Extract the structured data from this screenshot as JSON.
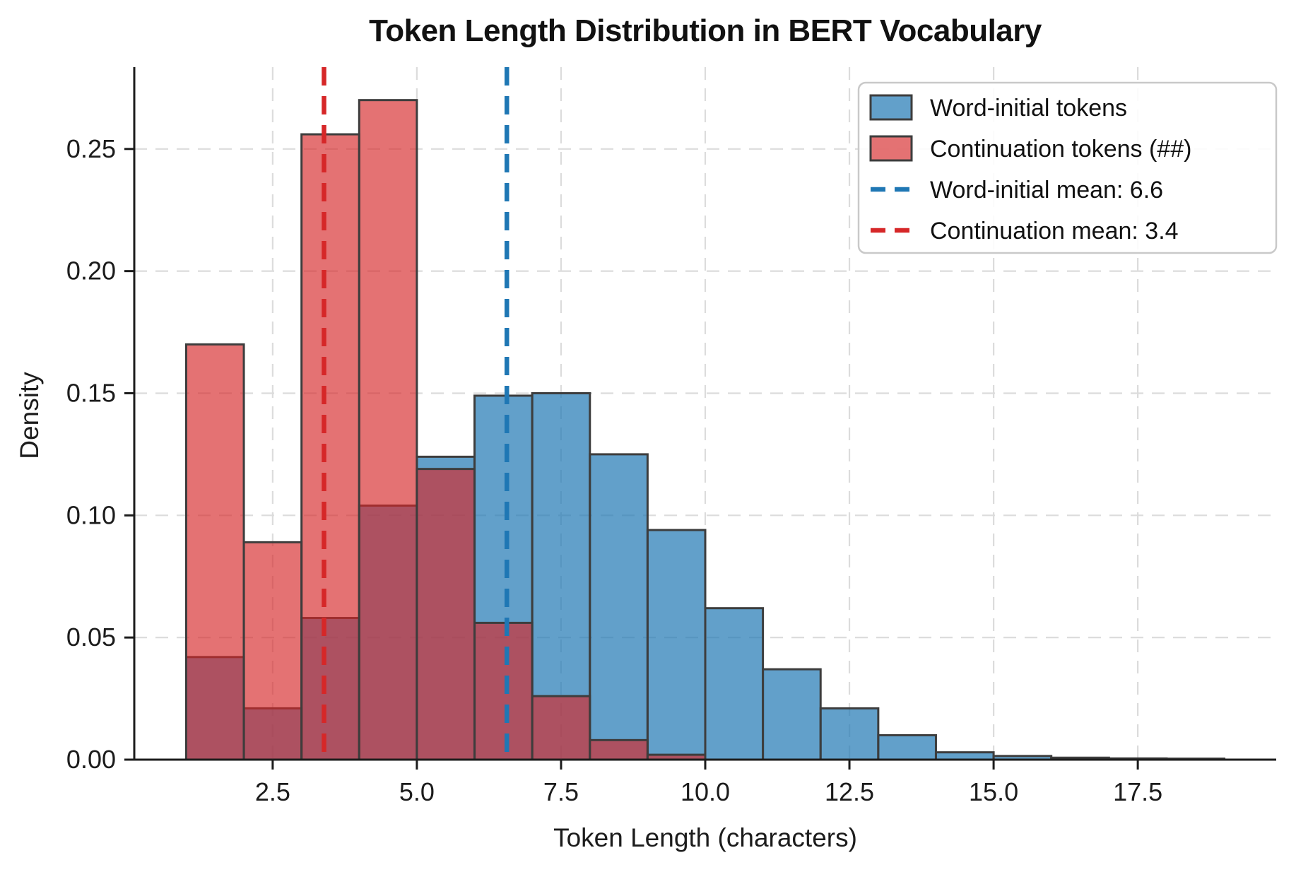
{
  "title": "Token Length Distribution in BERT Vocabulary",
  "axes": {
    "xlabel": "Token Length (characters)",
    "ylabel": "Density"
  },
  "chart_data": {
    "type": "histogram",
    "stat": "density",
    "bin_width": 1,
    "xlim": [
      0.1,
      19.9
    ],
    "ylim": [
      0,
      0.2835
    ],
    "grid": true,
    "grid_style": "dashed",
    "x_ticks": [
      {
        "value": 2.5,
        "label": "2.5"
      },
      {
        "value": 5.0,
        "label": "5.0"
      },
      {
        "value": 7.5,
        "label": "7.5"
      },
      {
        "value": 10.0,
        "label": "10.0"
      },
      {
        "value": 12.5,
        "label": "12.5"
      },
      {
        "value": 15.0,
        "label": "15.0"
      },
      {
        "value": 17.5,
        "label": "17.5"
      }
    ],
    "y_ticks": [
      {
        "value": 0.0,
        "label": "0.00"
      },
      {
        "value": 0.05,
        "label": "0.05"
      },
      {
        "value": 0.1,
        "label": "0.10"
      },
      {
        "value": 0.15,
        "label": "0.15"
      },
      {
        "value": 0.2,
        "label": "0.20"
      },
      {
        "value": 0.25,
        "label": "0.25"
      }
    ],
    "series": [
      {
        "name": "Word-initial tokens",
        "color": "#1f77b4",
        "fill_opacity": 0.7,
        "bin_start": 1,
        "densities": [
          0.042,
          0.021,
          0.058,
          0.104,
          0.124,
          0.149,
          0.15,
          0.125,
          0.094,
          0.062,
          0.037,
          0.021,
          0.01,
          0.003,
          0.0015,
          0.0008,
          0.0005,
          0.0004
        ]
      },
      {
        "name": "Continuation tokens (##)",
        "color": "#d62728",
        "fill_opacity": 0.65,
        "bin_start": 1,
        "densities": [
          0.17,
          0.089,
          0.256,
          0.27,
          0.119,
          0.056,
          0.026,
          0.008,
          0.002
        ]
      }
    ],
    "mean_lines": [
      {
        "label": "Word-initial mean: 6.6",
        "value": 6.56,
        "color": "#1f77b4"
      },
      {
        "label": "Continuation mean: 3.4",
        "value": 3.39,
        "color": "#d62728"
      }
    ],
    "legend_position": "upper right"
  },
  "style": {
    "bar_edge_color": "#3d3d3d",
    "grid_color": "#dcdcdc",
    "spine_color": "#1c1c1c",
    "tick_text_color": "#1c1c1c",
    "legend_border_color": "#c9c9c9",
    "background": "#ffffff"
  }
}
